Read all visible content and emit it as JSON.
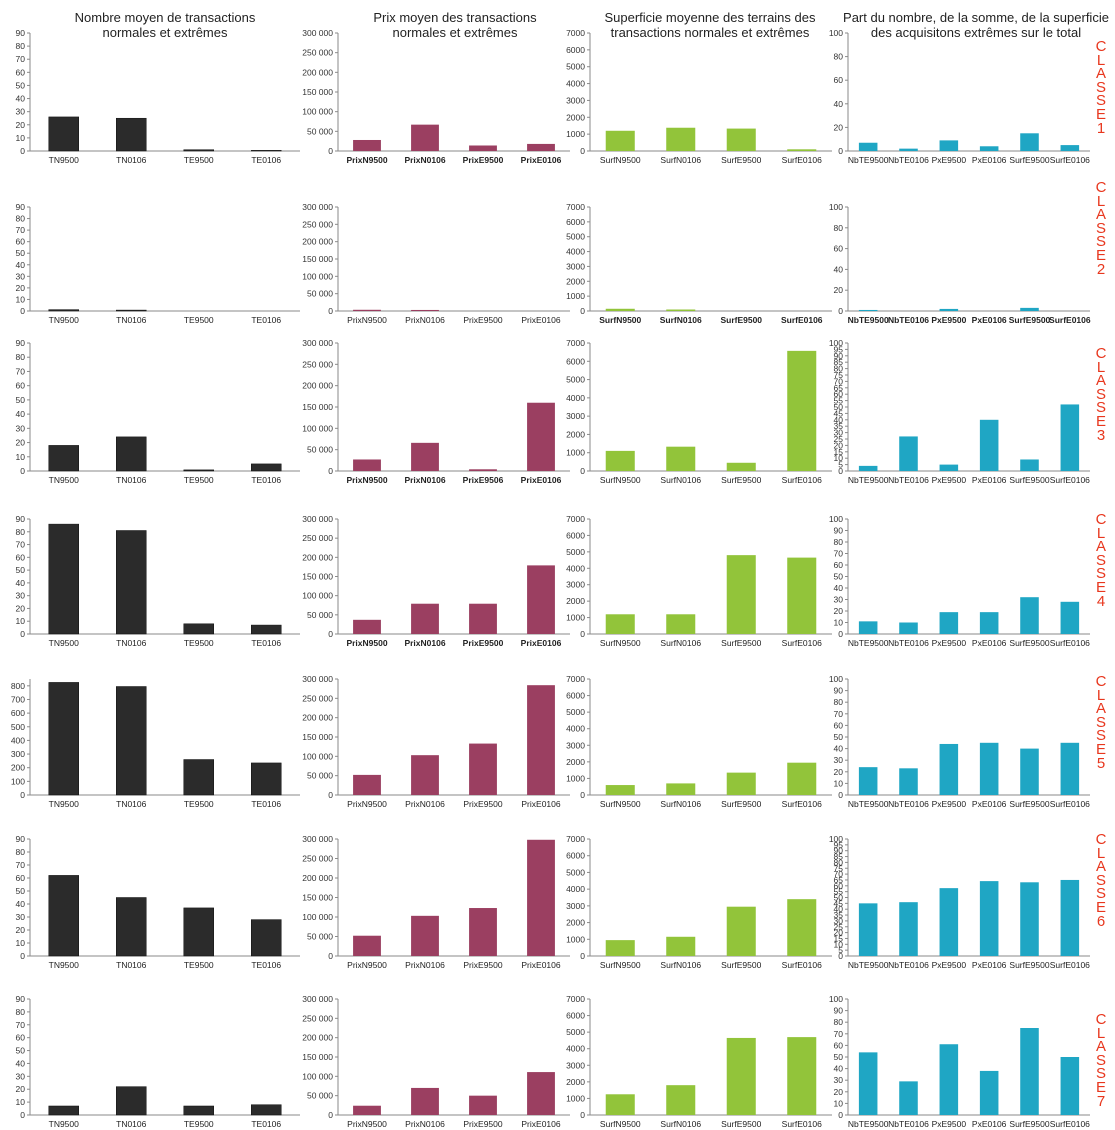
{
  "column_titles": [
    "Nombre moyen de transactions\nnormales et extrêmes",
    "Prix moyen des transactions\nnormales et extrêmes",
    "Superficie moyenne des terrains des\ntransactions normales et extrêmes",
    "Part du nombre, de la somme, de la superficie\ndes acquisitons extrêmes sur le total"
  ],
  "class_labels": [
    "C\nL\nA\nS\nS\nE\n1",
    "C\nL\nA\nS\nS\nE\n2",
    "C\nL\nA\nS\nS\nE\n3",
    "C\nL\nA\nS\nS\nE\n4",
    "C\nL\nA\nS\nS\nE\n5",
    "C\nL\nA\nS\nS\nE\n6",
    "C\nL\nA\nS\nS\nE\n7"
  ],
  "colors": {
    "nombre": "#2b2b2b",
    "prix": "#9b3f61",
    "superficie": "#92c43a",
    "part": "#1fa6c4",
    "class_label": "#e8371e"
  },
  "chart_data": [
    {
      "type": "bar",
      "row": 1,
      "col": 1,
      "categories": [
        "TN9500",
        "TN0106",
        "TE9500",
        "TE0106"
      ],
      "values": [
        26,
        25,
        1,
        0.5
      ],
      "ylim": [
        0,
        90
      ],
      "yticks": [
        "0",
        "10",
        "20",
        "30",
        "40",
        "50",
        "60",
        "70",
        "80",
        "90"
      ]
    },
    {
      "type": "bar",
      "row": 1,
      "col": 2,
      "categories": [
        "PrixN9500",
        "PrixN0106",
        "PrixE9500",
        "PrixE0106"
      ],
      "values": [
        28000,
        67000,
        14000,
        18000
      ],
      "ylim": [
        0,
        300000
      ],
      "yticks": [
        "0",
        "50 000",
        "100 000",
        "150 000",
        "200 000",
        "250 000",
        "300 000"
      ],
      "bold_labels": true
    },
    {
      "type": "bar",
      "row": 1,
      "col": 3,
      "categories": [
        "SurfN9500",
        "SurfN0106",
        "SurfE9500",
        "SurfE0106"
      ],
      "values": [
        1200,
        1380,
        1330,
        100
      ],
      "ylim": [
        0,
        7000
      ],
      "yticks": [
        "0",
        "1000",
        "2000",
        "3000",
        "4000",
        "5000",
        "6000",
        "7000"
      ]
    },
    {
      "type": "bar",
      "row": 1,
      "col": 4,
      "categories": [
        "NbTE9500",
        "NbTE0106",
        "PxE9500",
        "PxE0106",
        "SurfE9500",
        "SurfE0106"
      ],
      "values": [
        7,
        2,
        9,
        4,
        15,
        5
      ],
      "ylim": [
        0,
        100
      ],
      "yticks": [
        "0",
        "20",
        "40",
        "60",
        "80",
        "100"
      ]
    },
    {
      "type": "bar",
      "row": 2,
      "col": 1,
      "categories": [
        "TN9500",
        "TN0106",
        "TE9500",
        "TE0106"
      ],
      "values": [
        1.2,
        0.8,
        0,
        0
      ],
      "ylim": [
        0,
        90
      ],
      "yticks": [
        "0",
        "10",
        "20",
        "30",
        "40",
        "50",
        "60",
        "70",
        "80",
        "90"
      ]
    },
    {
      "type": "bar",
      "row": 2,
      "col": 2,
      "categories": [
        "PrixN9500",
        "PrixN0106",
        "PrixE9500",
        "PrixE0106"
      ],
      "values": [
        3500,
        3000,
        0,
        0
      ],
      "ylim": [
        0,
        300000
      ],
      "yticks": [
        "0",
        "50 000",
        "100 000",
        "150 000",
        "200 000",
        "250 000",
        "300 000"
      ]
    },
    {
      "type": "bar",
      "row": 2,
      "col": 3,
      "categories": [
        "SurfN9500",
        "SurfN0106",
        "SurfE9500",
        "SurfE0106"
      ],
      "values": [
        150,
        100,
        0,
        0
      ],
      "ylim": [
        0,
        7000
      ],
      "yticks": [
        "0",
        "1000",
        "2000",
        "3000",
        "4000",
        "5000",
        "6000",
        "7000"
      ],
      "bold_labels": true
    },
    {
      "type": "bar",
      "row": 2,
      "col": 4,
      "categories": [
        "NbTE9500",
        "NbTE0106",
        "PxE9500",
        "PxE0106",
        "SurfE9500",
        "SurfE0106"
      ],
      "values": [
        1,
        0,
        2,
        0,
        3,
        0
      ],
      "ylim": [
        0,
        100
      ],
      "yticks": [
        "0",
        "20",
        "40",
        "60",
        "80",
        "100"
      ],
      "bold_labels": true
    },
    {
      "type": "bar",
      "row": 3,
      "col": 1,
      "categories": [
        "TN9500",
        "TN0106",
        "TE9500",
        "TE0106"
      ],
      "values": [
        18,
        24,
        0.8,
        5
      ],
      "ylim": [
        0,
        90
      ],
      "yticks": [
        "0",
        "10",
        "20",
        "30",
        "40",
        "50",
        "60",
        "70",
        "80",
        "90"
      ]
    },
    {
      "type": "bar",
      "row": 3,
      "col": 2,
      "categories": [
        "PrixN9500",
        "PrixN0106",
        "PrixE9506",
        "PrixE0106"
      ],
      "values": [
        27000,
        66000,
        4000,
        160000
      ],
      "ylim": [
        0,
        300000
      ],
      "yticks": [
        "0",
        "50 000",
        "100 000",
        "150 000",
        "200 000",
        "250 000",
        "300 000"
      ],
      "bold_labels": true
    },
    {
      "type": "bar",
      "row": 3,
      "col": 3,
      "categories": [
        "SurfN9500",
        "SurfN0106",
        "SurfE9500",
        "SurfE0106"
      ],
      "values": [
        1100,
        1330,
        450,
        6570
      ],
      "ylim": [
        0,
        7000
      ],
      "yticks": [
        "0",
        "1000",
        "2000",
        "3000",
        "4000",
        "5000",
        "6000",
        "7000"
      ]
    },
    {
      "type": "bar",
      "row": 3,
      "col": 4,
      "categories": [
        "NbTE9500",
        "NbTE0106",
        "PxE9500",
        "PxE0106",
        "SurfE9500",
        "SurfE0106"
      ],
      "values": [
        4,
        27,
        5,
        40,
        9,
        52
      ],
      "ylim": [
        0,
        100
      ],
      "yticks": [
        "0",
        "5",
        "10",
        "15",
        "20",
        "25",
        "30",
        "35",
        "40",
        "45",
        "50",
        "55",
        "60",
        "65",
        "70",
        "75",
        "80",
        "85",
        "90",
        "95",
        "100"
      ]
    },
    {
      "type": "bar",
      "row": 4,
      "col": 1,
      "categories": [
        "TN9500",
        "TN0106",
        "TE9500",
        "TE0106"
      ],
      "values": [
        86,
        81,
        8,
        7
      ],
      "ylim": [
        0,
        90
      ],
      "yticks": [
        "0",
        "10",
        "20",
        "30",
        "40",
        "50",
        "60",
        "70",
        "80",
        "90"
      ]
    },
    {
      "type": "bar",
      "row": 4,
      "col": 2,
      "categories": [
        "PrixN9500",
        "PrixN0106",
        "PrixE9500",
        "PrixE0106"
      ],
      "values": [
        37000,
        79000,
        79000,
        179000
      ],
      "ylim": [
        0,
        300000
      ],
      "yticks": [
        "0",
        "50 000",
        "100 000",
        "150 000",
        "200 000",
        "250 000",
        "300 000"
      ],
      "bold_labels": true
    },
    {
      "type": "bar",
      "row": 4,
      "col": 3,
      "categories": [
        "SurfN9500",
        "SurfN0106",
        "SurfE9500",
        "SurfE0106"
      ],
      "values": [
        1200,
        1200,
        4800,
        4650
      ],
      "ylim": [
        0,
        7000
      ],
      "yticks": [
        "0",
        "1000",
        "2000",
        "3000",
        "4000",
        "5000",
        "6000",
        "7000"
      ]
    },
    {
      "type": "bar",
      "row": 4,
      "col": 4,
      "categories": [
        "NbTE9500",
        "NbTE0106",
        "PxE9500",
        "PxE0106",
        "SurfE9500",
        "SurfE0106"
      ],
      "values": [
        11,
        10,
        19,
        19,
        32,
        28
      ],
      "ylim": [
        0,
        100
      ],
      "yticks": [
        "0",
        "10",
        "20",
        "30",
        "40",
        "50",
        "60",
        "70",
        "80",
        "90",
        "100"
      ]
    },
    {
      "type": "bar",
      "row": 5,
      "col": 1,
      "categories": [
        "TN9500",
        "TN0106",
        "TE9500",
        "TE0106"
      ],
      "values": [
        825,
        795,
        260,
        235
      ],
      "ylim": [
        0,
        850
      ],
      "yticks": [
        "0",
        "100",
        "200",
        "300",
        "400",
        "500",
        "600",
        "700",
        "800"
      ]
    },
    {
      "type": "bar",
      "row": 5,
      "col": 2,
      "categories": [
        "PrixN9500",
        "PrixN0106",
        "PrixE9500",
        "PrixE0106"
      ],
      "values": [
        52000,
        103000,
        133000,
        284000
      ],
      "ylim": [
        0,
        300000
      ],
      "yticks": [
        "0",
        "50 000",
        "100 000",
        "150 000",
        "200 000",
        "250 000",
        "300 000"
      ]
    },
    {
      "type": "bar",
      "row": 5,
      "col": 3,
      "categories": [
        "SurfN9500",
        "SurfN0106",
        "SurfE9500",
        "SurfE0106"
      ],
      "values": [
        600,
        700,
        1350,
        1950
      ],
      "ylim": [
        0,
        7000
      ],
      "yticks": [
        "0",
        "1000",
        "2000",
        "3000",
        "4000",
        "5000",
        "6000",
        "7000"
      ]
    },
    {
      "type": "bar",
      "row": 5,
      "col": 4,
      "categories": [
        "NbTE9500",
        "NbTE0106",
        "PxE9500",
        "PxE0106",
        "SurfE9500",
        "SurfE0106"
      ],
      "values": [
        24,
        23,
        44,
        45,
        40,
        45
      ],
      "ylim": [
        0,
        100
      ],
      "yticks": [
        "0",
        "10",
        "20",
        "30",
        "40",
        "50",
        "60",
        "70",
        "80",
        "90",
        "100"
      ]
    },
    {
      "type": "bar",
      "row": 6,
      "col": 1,
      "categories": [
        "TN9500",
        "TN0106",
        "TE9500",
        "TE0106"
      ],
      "values": [
        62,
        45,
        37,
        28
      ],
      "ylim": [
        0,
        90
      ],
      "yticks": [
        "0",
        "10",
        "20",
        "30",
        "40",
        "50",
        "60",
        "70",
        "80",
        "90"
      ]
    },
    {
      "type": "bar",
      "row": 6,
      "col": 2,
      "categories": [
        "PrixN9500",
        "PrixN0106",
        "PrixE9500",
        "PrixE0106"
      ],
      "values": [
        52000,
        103000,
        123000,
        298000
      ],
      "ylim": [
        0,
        300000
      ],
      "yticks": [
        "0",
        "50 000",
        "100 000",
        "150 000",
        "200 000",
        "250 000",
        "300 000"
      ]
    },
    {
      "type": "bar",
      "row": 6,
      "col": 3,
      "categories": [
        "SurfN9500",
        "SurfN0106",
        "SurfE9500",
        "SurfE0106"
      ],
      "values": [
        950,
        1150,
        2950,
        3400
      ],
      "ylim": [
        0,
        7000
      ],
      "yticks": [
        "0",
        "1000",
        "2000",
        "3000",
        "4000",
        "5000",
        "6000",
        "7000"
      ]
    },
    {
      "type": "bar",
      "row": 6,
      "col": 4,
      "categories": [
        "NbTE9500",
        "NbTE0106",
        "PxE9500",
        "PxE0106",
        "SurfE9500",
        "SurfE0106"
      ],
      "values": [
        45,
        46,
        58,
        64,
        63,
        65
      ],
      "ylim": [
        0,
        100
      ],
      "yticks": [
        "0",
        "5",
        "10",
        "15",
        "20",
        "25",
        "30",
        "35",
        "40",
        "45",
        "50",
        "55",
        "60",
        "65",
        "70",
        "75",
        "80",
        "85",
        "90",
        "95",
        "100"
      ]
    },
    {
      "type": "bar",
      "row": 7,
      "col": 1,
      "categories": [
        "TN9500",
        "TN0106",
        "TE9500",
        "TE0106"
      ],
      "values": [
        7,
        22,
        7,
        8
      ],
      "ylim": [
        0,
        90
      ],
      "yticks": [
        "0",
        "10",
        "20",
        "30",
        "40",
        "50",
        "60",
        "70",
        "80",
        "90"
      ]
    },
    {
      "type": "bar",
      "row": 7,
      "col": 2,
      "categories": [
        "PrixN9500",
        "PrixN0106",
        "PrixE9500",
        "PrixE0106"
      ],
      "values": [
        24000,
        70000,
        50000,
        111000
      ],
      "ylim": [
        0,
        300000
      ],
      "yticks": [
        "0",
        "50 000",
        "100 000",
        "150 000",
        "200 000",
        "250 000",
        "300 000"
      ]
    },
    {
      "type": "bar",
      "row": 7,
      "col": 3,
      "categories": [
        "SurfN9500",
        "SurfN0106",
        "SurfE9500",
        "SurfE0106"
      ],
      "values": [
        1250,
        1800,
        4650,
        4700
      ],
      "ylim": [
        0,
        7000
      ],
      "yticks": [
        "0",
        "1000",
        "2000",
        "3000",
        "4000",
        "5000",
        "6000",
        "7000"
      ]
    },
    {
      "type": "bar",
      "row": 7,
      "col": 4,
      "categories": [
        "NbTE9500",
        "NbTE0106",
        "PxE9500",
        "PxE0106",
        "SurfE9500",
        "SurfE0106"
      ],
      "values": [
        54,
        29,
        61,
        38,
        75,
        50
      ],
      "ylim": [
        0,
        100
      ],
      "yticks": [
        "0",
        "10",
        "20",
        "30",
        "40",
        "50",
        "60",
        "70",
        "80",
        "90",
        "100"
      ]
    }
  ]
}
